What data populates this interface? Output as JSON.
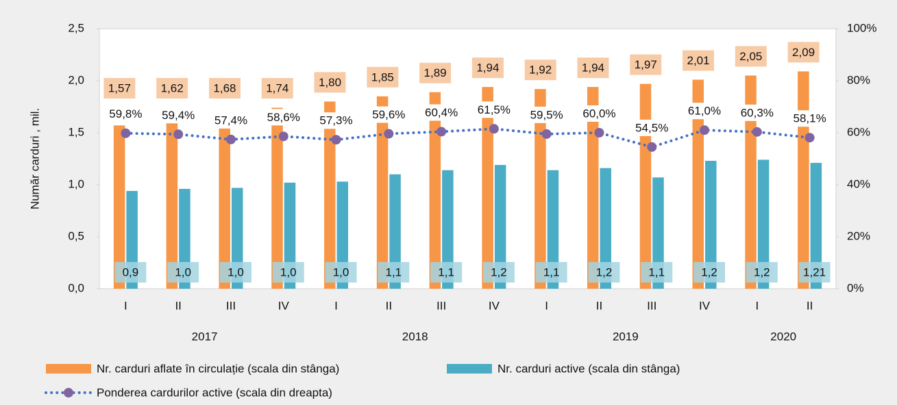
{
  "chart_data": {
    "type": "bar_line",
    "y_label": "Număr carduri , mil.",
    "categories": [
      "I",
      "II",
      "III",
      "IV",
      "I",
      "II",
      "III",
      "IV",
      "I",
      "II",
      "III",
      "IV",
      "I",
      "II"
    ],
    "x_groups": [
      "2017",
      "2017",
      "2017",
      "2017",
      "2018",
      "2018",
      "2018",
      "2018",
      "2019",
      "2019",
      "2019",
      "2019",
      "2020",
      "2020"
    ],
    "series": [
      {
        "name": "Nr. carduri aflate în circulație (scala din stânga)",
        "type": "bar",
        "color": "#f79646",
        "label_color": "#f8cba7",
        "values": [
          1.57,
          1.62,
          1.68,
          1.74,
          1.8,
          1.85,
          1.89,
          1.94,
          1.92,
          1.94,
          1.97,
          2.01,
          2.05,
          2.09
        ],
        "value_labels": [
          "1,57",
          "1,62",
          "1,68",
          "1,74",
          "1,80",
          "1,85",
          "1,89",
          "1,94",
          "1,92",
          "1,94",
          "1,97",
          "2,01",
          "2,05",
          "2,09"
        ]
      },
      {
        "name": "Nr. carduri active (scala din stânga)",
        "type": "bar",
        "color": "#4bacc6",
        "label_color": "#a5d5e2",
        "values": [
          0.94,
          0.96,
          0.97,
          1.02,
          1.03,
          1.1,
          1.14,
          1.19,
          1.14,
          1.16,
          1.07,
          1.23,
          1.24,
          1.21
        ],
        "value_labels": [
          "0,9",
          "1,0",
          "1,0",
          "1,0",
          "1,0",
          "1,1",
          "1,1",
          "1,2",
          "1,1",
          "1,2",
          "1,1",
          "1,2",
          "1,2",
          "1,21"
        ]
      },
      {
        "name": "Ponderea cardurilor active (scala din dreapta)",
        "type": "line",
        "axis": "y2",
        "color": "#4472c4",
        "marker_color": "#8064a2",
        "values": [
          59.8,
          59.4,
          57.4,
          58.6,
          57.3,
          59.6,
          60.4,
          61.5,
          59.5,
          60.0,
          54.5,
          61.0,
          60.3,
          58.1
        ],
        "value_labels": [
          "59,8%",
          "59,4%",
          "57,4%",
          "58,6%",
          "57,3%",
          "59,6%",
          "60,4%",
          "61,5%",
          "59,5%",
          "60,0%",
          "54,5%",
          "61,0%",
          "60,3%",
          "58,1%"
        ]
      }
    ],
    "ylim": [
      0,
      2.5
    ],
    "yticks": [
      {
        "value": 0,
        "label": "0,0"
      },
      {
        "value": 0.5,
        "label": "0,5"
      },
      {
        "value": 1,
        "label": "1,0"
      },
      {
        "value": 1.5,
        "label": "1,5"
      },
      {
        "value": 2,
        "label": "2,0"
      },
      {
        "value": 2.5,
        "label": "2,5"
      }
    ],
    "y2lim": [
      0,
      100
    ],
    "y2ticks": [
      {
        "value": 0,
        "label": "0%"
      },
      {
        "value": 20,
        "label": "20%"
      },
      {
        "value": 40,
        "label": "40%"
      },
      {
        "value": 60,
        "label": "60%"
      },
      {
        "value": 80,
        "label": "80%"
      },
      {
        "value": 100,
        "label": "100%"
      }
    ],
    "legend": "bottom"
  }
}
